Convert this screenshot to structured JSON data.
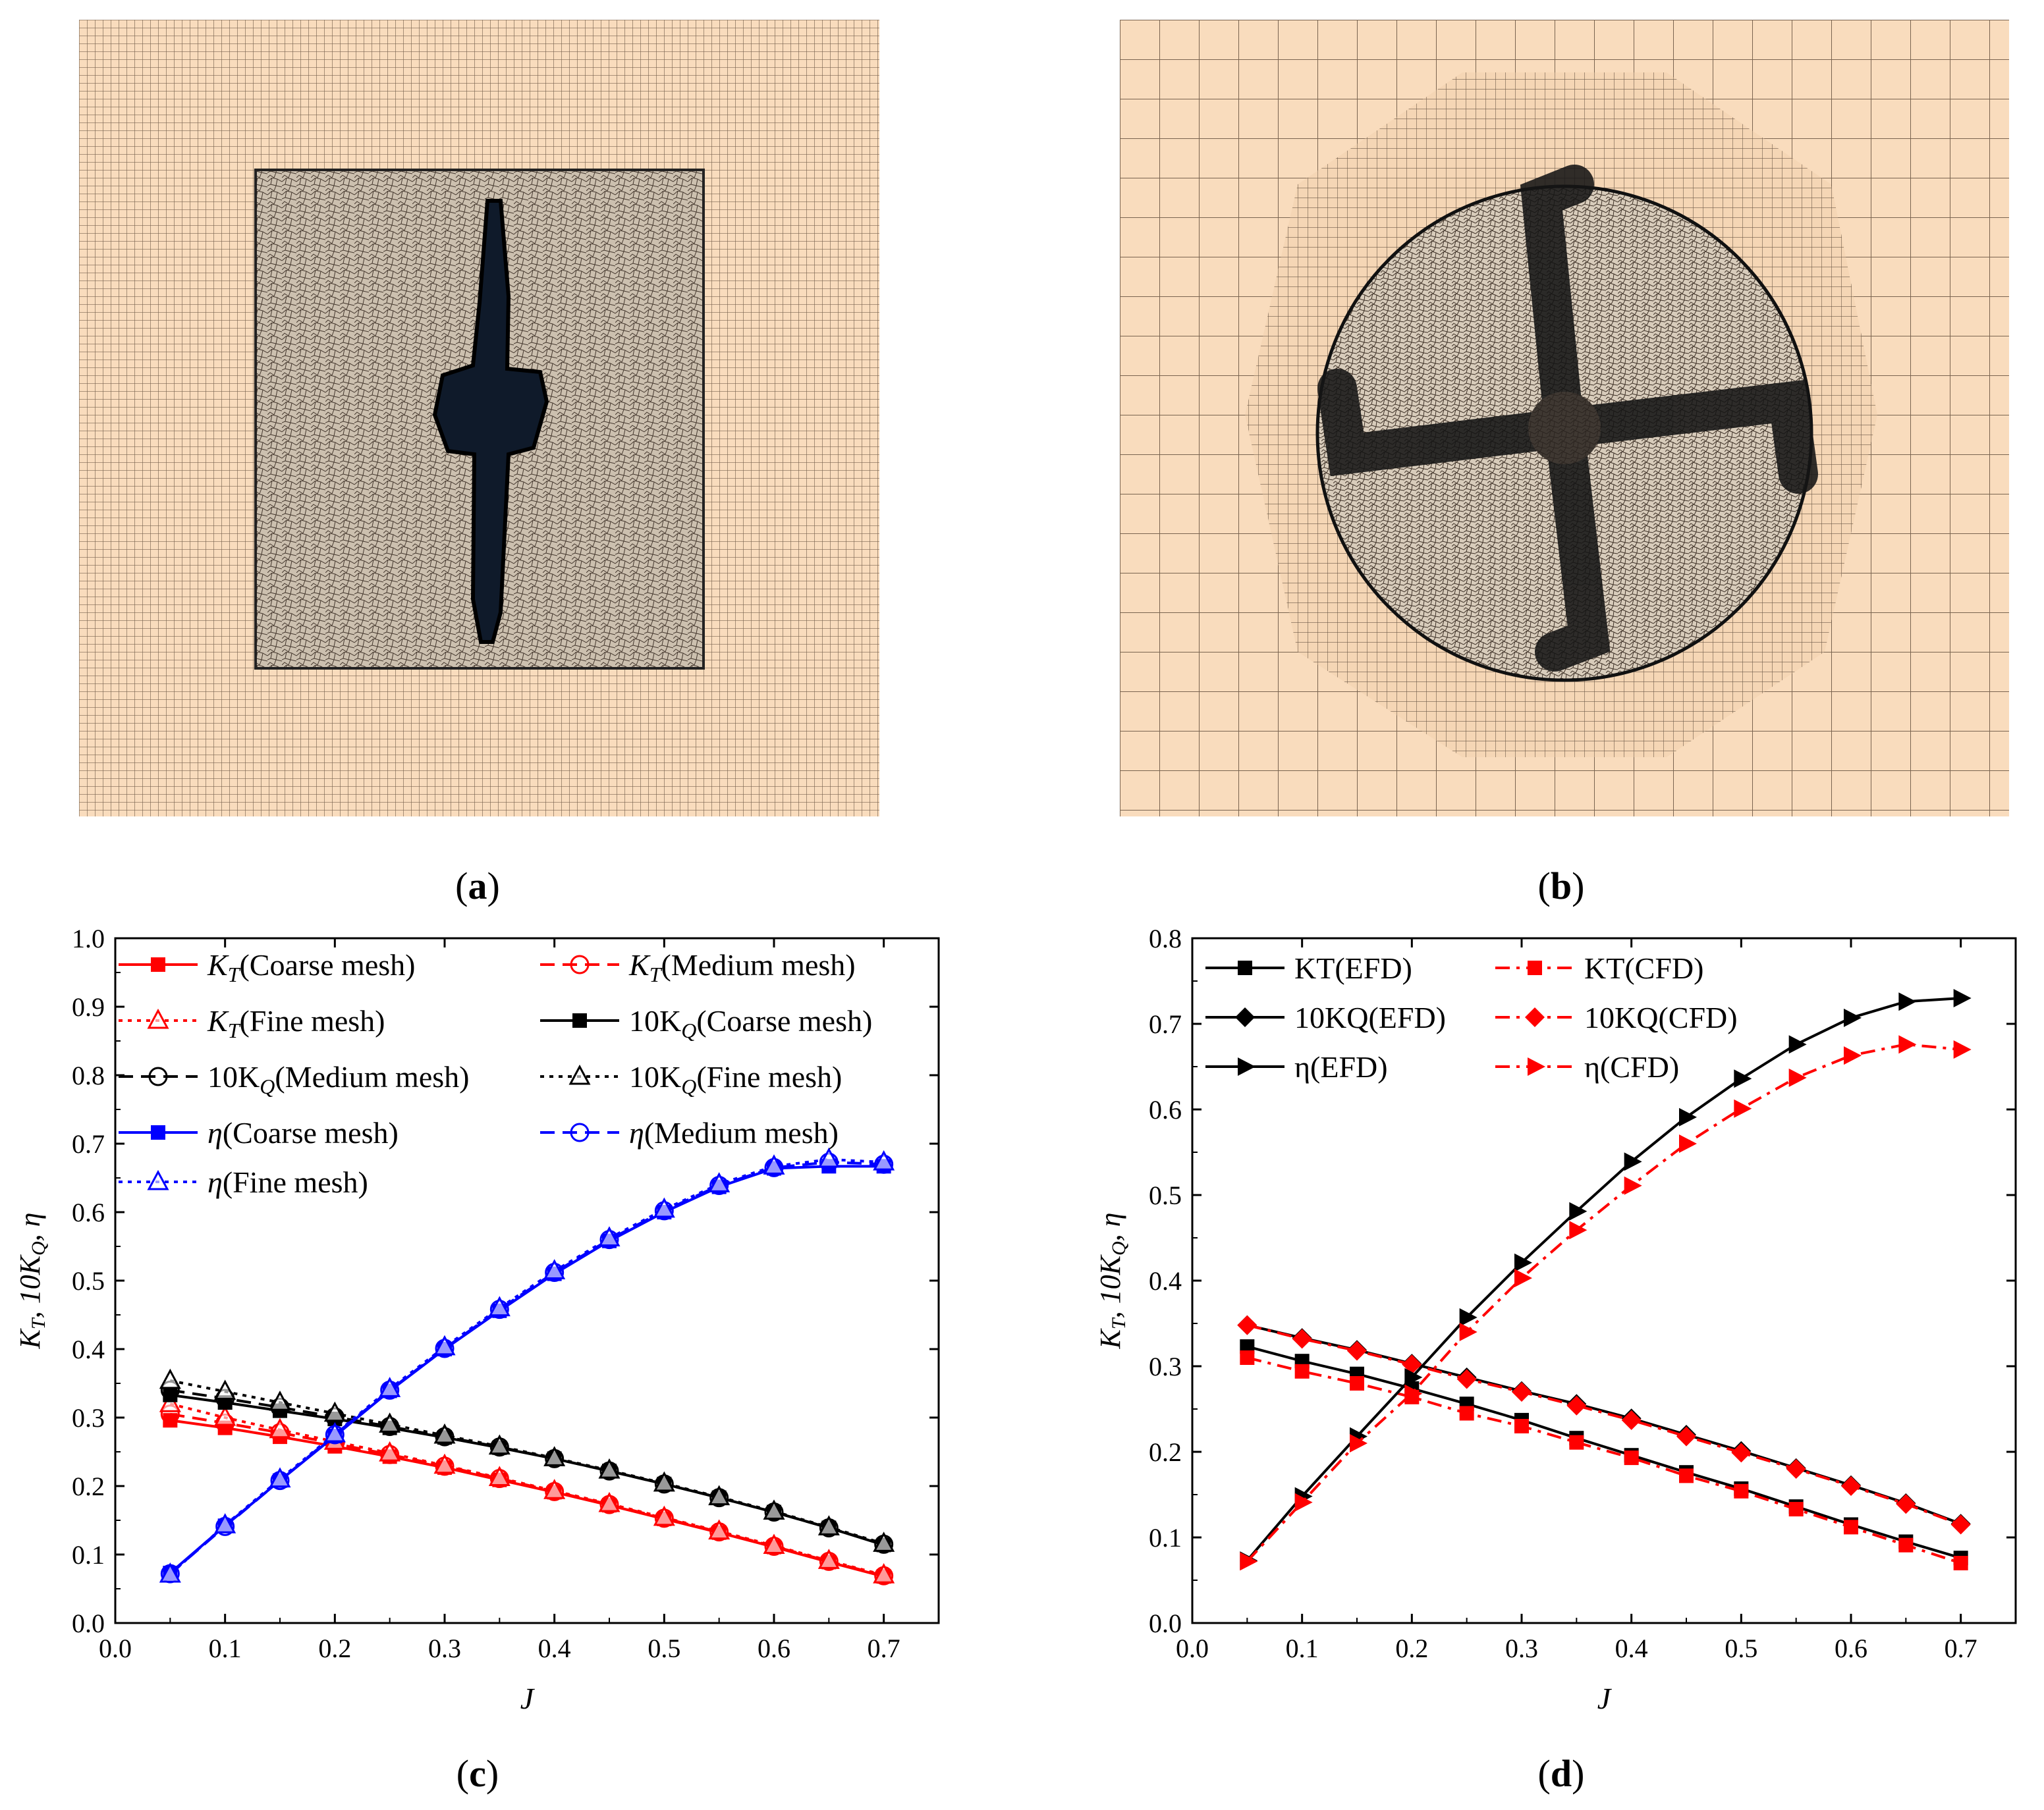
{
  "captions": {
    "a": "a",
    "b": "b",
    "c": "c",
    "d": "d"
  },
  "colors": {
    "mesh_bg": "#f9dcbd",
    "mesh_line": "#6e5a48",
    "red": "#ff0000",
    "blue": "#0000ff",
    "black": "#000000"
  },
  "chart_data": [
    {
      "id": "c",
      "type": "line",
      "xlabel": "J",
      "ylabel_parts": [
        "K",
        "T",
        ",  10K",
        "Q",
        ",  η"
      ],
      "xlim": [
        0.0,
        0.75
      ],
      "ylim": [
        0.0,
        1.0
      ],
      "xticks": [
        "0.0",
        "0.1",
        "0.2",
        "0.3",
        "0.4",
        "0.5",
        "0.6",
        "0.7"
      ],
      "yticks": [
        "0.0",
        "0.1",
        "0.2",
        "0.3",
        "0.4",
        "0.5",
        "0.6",
        "0.7",
        "0.8",
        "0.9",
        "1.0"
      ],
      "x": [
        0.05,
        0.1,
        0.15,
        0.2,
        0.25,
        0.3,
        0.35,
        0.4,
        0.45,
        0.5,
        0.55,
        0.6,
        0.65,
        0.7
      ],
      "series": [
        {
          "name": "KT(Coarse mesh)",
          "label_main": "K",
          "label_sub": "T",
          "label_rest": "(Coarse mesh)",
          "color": "#ff0000",
          "dash": "solid",
          "marker": "square-filled",
          "values": [
            0.296,
            0.285,
            0.272,
            0.258,
            0.243,
            0.227,
            0.209,
            0.191,
            0.172,
            0.152,
            0.132,
            0.111,
            0.089,
            0.068
          ]
        },
        {
          "name": "KT(Medium mesh)",
          "label_main": "K",
          "label_sub": "T",
          "label_rest": "(Medium mesh)",
          "color": "#ff0000",
          "dash": "dash",
          "marker": "circle-open",
          "values": [
            0.305,
            0.292,
            0.278,
            0.262,
            0.246,
            0.229,
            0.211,
            0.192,
            0.173,
            0.153,
            0.133,
            0.112,
            0.09,
            0.069
          ]
        },
        {
          "name": "KT(Fine mesh)",
          "label_main": "K",
          "label_sub": "T",
          "label_rest": "(Fine mesh)",
          "color": "#ff0000",
          "dash": "dot",
          "marker": "triangle-open",
          "values": [
            0.32,
            0.3,
            0.282,
            0.265,
            0.248,
            0.23,
            0.212,
            0.193,
            0.174,
            0.154,
            0.134,
            0.113,
            0.091,
            0.07
          ]
        },
        {
          "name": "10KQ(Coarse mesh)",
          "label_main": "10K",
          "label_sub": "Q",
          "label_rest": "(Coarse mesh)",
          "color": "#000000",
          "dash": "solid",
          "marker": "square-filled",
          "values": [
            0.333,
            0.322,
            0.31,
            0.298,
            0.285,
            0.271,
            0.256,
            0.24,
            0.222,
            0.203,
            0.183,
            0.162,
            0.139,
            0.114
          ]
        },
        {
          "name": "10KQ(Medium mesh)",
          "label_main": "10K",
          "label_sub": "Q",
          "label_rest": "(Medium mesh)",
          "color": "#000000",
          "dash": "dash",
          "marker": "circle-open",
          "values": [
            0.34,
            0.328,
            0.315,
            0.301,
            0.287,
            0.272,
            0.257,
            0.24,
            0.222,
            0.203,
            0.183,
            0.162,
            0.139,
            0.115
          ]
        },
        {
          "name": "10KQ(Fine mesh)",
          "label_main": "10K",
          "label_sub": "Q",
          "label_rest": "(Fine mesh)",
          "color": "#000000",
          "dash": "dot",
          "marker": "triangle-open",
          "values": [
            0.354,
            0.338,
            0.322,
            0.306,
            0.29,
            0.274,
            0.258,
            0.241,
            0.223,
            0.204,
            0.184,
            0.163,
            0.14,
            0.116
          ]
        },
        {
          "name": "η(Coarse mesh)",
          "label_main": "η",
          "label_sub": "",
          "label_rest": "(Coarse mesh)",
          "color": "#0000ff",
          "dash": "solid",
          "marker": "square-filled",
          "values": [
            0.073,
            0.142,
            0.208,
            0.273,
            0.339,
            0.4,
            0.456,
            0.51,
            0.558,
            0.6,
            0.637,
            0.664,
            0.667,
            0.667
          ]
        },
        {
          "name": "η(Medium mesh)",
          "label_main": "η",
          "label_sub": "",
          "label_rest": "(Medium mesh)",
          "color": "#0000ff",
          "dash": "dash",
          "marker": "circle-open",
          "values": [
            0.072,
            0.141,
            0.208,
            0.275,
            0.34,
            0.401,
            0.458,
            0.512,
            0.56,
            0.602,
            0.639,
            0.665,
            0.673,
            0.67
          ]
        },
        {
          "name": "η(Fine mesh)",
          "label_main": "η",
          "label_sub": "",
          "label_rest": "(Fine mesh)",
          "color": "#0000ff",
          "dash": "dot",
          "marker": "triangle-open",
          "values": [
            0.071,
            0.143,
            0.21,
            0.276,
            0.342,
            0.403,
            0.46,
            0.514,
            0.562,
            0.604,
            0.641,
            0.667,
            0.677,
            0.673
          ]
        }
      ]
    },
    {
      "id": "d",
      "type": "line",
      "xlabel": "J",
      "ylabel_parts": [
        "K",
        "T",
        ",  10K",
        "Q",
        ",  η"
      ],
      "xlim": [
        0.0,
        0.75
      ],
      "ylim": [
        0.0,
        0.8
      ],
      "xticks": [
        "0.0",
        "0.1",
        "0.2",
        "0.3",
        "0.4",
        "0.5",
        "0.6",
        "0.7"
      ],
      "yticks": [
        "0.0",
        "0.1",
        "0.2",
        "0.3",
        "0.4",
        "0.5",
        "0.6",
        "0.7",
        "0.8"
      ],
      "x": [
        0.05,
        0.1,
        0.15,
        0.2,
        0.25,
        0.3,
        0.35,
        0.4,
        0.45,
        0.5,
        0.55,
        0.6,
        0.65,
        0.7
      ],
      "series": [
        {
          "name": "KT(EFD)",
          "label_main": "KT(EFD)",
          "label_sub": "",
          "label_rest": "",
          "color": "#000000",
          "dash": "solid",
          "marker": "square-filled",
          "values": [
            0.323,
            0.306,
            0.291,
            0.274,
            0.256,
            0.237,
            0.216,
            0.196,
            0.176,
            0.157,
            0.136,
            0.115,
            0.095,
            0.076
          ]
        },
        {
          "name": "KT(CFD)",
          "label_main": "KT(CFD)",
          "label_sub": "",
          "label_rest": "",
          "color": "#ff0000",
          "dash": "dashdot",
          "marker": "square-filled",
          "values": [
            0.31,
            0.294,
            0.28,
            0.264,
            0.245,
            0.23,
            0.211,
            0.193,
            0.172,
            0.154,
            0.133,
            0.112,
            0.091,
            0.07
          ]
        },
        {
          "name": "10KQ(EFD)",
          "label_main": "10KQ(EFD)",
          "label_sub": "",
          "label_rest": "",
          "color": "#000000",
          "dash": "solid",
          "marker": "diamond-filled",
          "values": [
            0.348,
            0.333,
            0.319,
            0.303,
            0.287,
            0.271,
            0.256,
            0.239,
            0.22,
            0.201,
            0.181,
            0.161,
            0.14,
            0.116
          ]
        },
        {
          "name": "10KQ(CFD)",
          "label_main": "10KQ(CFD)",
          "label_sub": "",
          "label_rest": "",
          "color": "#ff0000",
          "dash": "dashdot",
          "marker": "diamond-filled",
          "values": [
            0.348,
            0.332,
            0.318,
            0.302,
            0.285,
            0.27,
            0.254,
            0.237,
            0.218,
            0.199,
            0.18,
            0.16,
            0.139,
            0.115
          ]
        },
        {
          "name": "η(EFD)",
          "label_main": "η(EFD)",
          "label_sub": "",
          "label_rest": "",
          "color": "#000000",
          "dash": "solid",
          "marker": "triangle-right-filled",
          "values": [
            0.073,
            0.148,
            0.218,
            0.287,
            0.357,
            0.421,
            0.481,
            0.539,
            0.591,
            0.636,
            0.676,
            0.707,
            0.726,
            0.73
          ]
        },
        {
          "name": "η(CFD)",
          "label_main": "η(CFD)",
          "label_sub": "",
          "label_rest": "",
          "color": "#ff0000",
          "dash": "dashdot",
          "marker": "triangle-right-filled",
          "values": [
            0.072,
            0.141,
            0.21,
            0.268,
            0.34,
            0.403,
            0.459,
            0.511,
            0.56,
            0.601,
            0.637,
            0.663,
            0.676,
            0.67
          ]
        }
      ]
    }
  ]
}
